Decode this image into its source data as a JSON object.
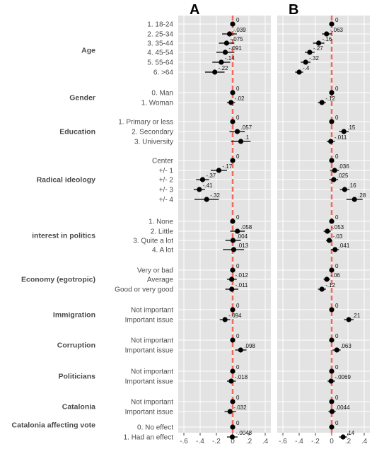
{
  "chart_data": {
    "type": "scatter",
    "subtype": "coefficient-plot",
    "x_range": [
      -0.6,
      0.4
    ],
    "x_ticks": [
      -0.6,
      -0.4,
      -0.2,
      0,
      0.2,
      0.4
    ],
    "x_tick_labels": [
      "-.6",
      "-.4",
      "-.2",
      "0",
      ".2",
      ".4"
    ],
    "reference_line": {
      "x": 0,
      "color": "#f26a5e",
      "style": "dashed"
    },
    "grid": true,
    "background": "#e3e3e3",
    "marker_color": "#000000",
    "groups": [
      {
        "label": "Age",
        "levels": [
          "1. 18-24",
          "2. 25-34",
          "3. 35-44",
          "4. 45-54",
          "5. 55-64",
          "6. >64"
        ]
      },
      {
        "label": "Gender",
        "levels": [
          "0. Man",
          "1. Woman"
        ]
      },
      {
        "label": "Education",
        "levels": [
          "1. Primary or less",
          "2. Secondary",
          "3. University"
        ]
      },
      {
        "label": "Radical ideology",
        "levels": [
          "Center",
          "+/- 1",
          "+/- 2",
          "+/- 3",
          "+/- 4"
        ]
      },
      {
        "label": "interest in politics",
        "levels": [
          "1. None",
          "2. Little",
          "3. Quite a lot",
          "4. A lot"
        ]
      },
      {
        "label": "Economy (egotropic)",
        "levels": [
          "Very or bad",
          "Average",
          "Good or very good"
        ]
      },
      {
        "label": "Immigration",
        "levels": [
          "Not important",
          "Important issue"
        ]
      },
      {
        "label": "Corruption",
        "levels": [
          "Not important",
          "Important issue"
        ]
      },
      {
        "label": "Politicians",
        "levels": [
          "Not important",
          "Important issue"
        ]
      },
      {
        "label": "Catalonia",
        "levels": [
          "Not important",
          "Important issue"
        ]
      },
      {
        "label": "Catalonia affecting vote",
        "levels": [
          "0. No effect",
          "1. Had an effect"
        ]
      }
    ],
    "panels": [
      {
        "title": "A",
        "values": [
          0,
          -0.039,
          -0.075,
          -0.091,
          -0.14,
          -0.22,
          0,
          -0.02,
          0,
          0.057,
          0.1,
          0,
          -0.17,
          -0.37,
          -0.41,
          -0.32,
          0,
          0.058,
          0.004,
          0.013,
          0,
          -0.012,
          -0.011,
          0,
          -0.094,
          0,
          0.098,
          0,
          -0.018,
          0,
          -0.032,
          0,
          -0.0048
        ],
        "labels": [
          "0",
          "-.039",
          "-.075",
          "-.091",
          "-.14",
          "-.22",
          "0",
          "-.02",
          "0",
          ".057",
          ".1",
          "0",
          "-.17",
          "-.37",
          "-.41",
          "-.32",
          "0",
          ".058",
          ".004",
          ".013",
          "0",
          "-.012",
          "-.011",
          "0",
          "-.094",
          "0",
          ".098",
          "0",
          "-.018",
          "0",
          "-.032",
          "0",
          "-.0048"
        ],
        "ci_low": [
          0,
          -0.13,
          -0.17,
          -0.2,
          -0.25,
          -0.34,
          0,
          -0.07,
          0,
          -0.04,
          -0.02,
          0,
          -0.27,
          -0.45,
          -0.48,
          -0.47,
          0,
          -0.03,
          -0.09,
          -0.12,
          0,
          -0.07,
          -0.09,
          0,
          -0.16,
          0,
          0.03,
          0,
          -0.07,
          0,
          -0.1,
          0,
          -0.07
        ],
        "ci_high": [
          0,
          0.05,
          0.02,
          0.02,
          -0.03,
          -0.1,
          0,
          0.03,
          0,
          0.15,
          0.22,
          0,
          -0.07,
          -0.29,
          -0.34,
          -0.17,
          0,
          0.15,
          0.1,
          0.14,
          0,
          0.05,
          0.07,
          0,
          -0.03,
          0,
          0.17,
          0,
          0.04,
          0,
          0.04,
          0,
          0.06
        ]
      },
      {
        "title": "B",
        "values": [
          0,
          -0.063,
          -0.16,
          -0.27,
          -0.32,
          -0.4,
          0,
          -0.12,
          0,
          0.15,
          -0.011,
          0,
          0.036,
          0.025,
          0.16,
          0.28,
          0,
          -0.053,
          -0.03,
          0.041,
          0,
          -0.06,
          -0.12,
          0,
          0.21,
          0,
          0.063,
          0,
          -0.0069,
          0,
          0.0044,
          0,
          0.14
        ],
        "labels": [
          "0",
          "-.063",
          "-.16",
          "-.27",
          "-.32",
          "-.4",
          "0",
          "-.12",
          "0",
          ".15",
          "-.011",
          "0",
          ".036",
          ".025",
          ".16",
          ".28",
          "0",
          "-.053",
          "-.03",
          ".041",
          "0",
          "-.06",
          "-.12",
          "0",
          ".21",
          "0",
          ".063",
          "0",
          "-.0069",
          "0",
          ".0044",
          "0",
          ".14"
        ],
        "ci_low": [
          0,
          -0.12,
          -0.23,
          -0.33,
          -0.38,
          -0.45,
          0,
          -0.17,
          0,
          0.09,
          -0.06,
          0,
          -0.02,
          -0.03,
          0.1,
          0.18,
          0,
          -0.1,
          -0.07,
          -0.01,
          0,
          -0.1,
          -0.17,
          0,
          0.15,
          0,
          0.01,
          0,
          -0.05,
          0,
          -0.04,
          0,
          0.09
        ],
        "ci_high": [
          0,
          0.0,
          -0.09,
          -0.21,
          -0.26,
          -0.35,
          0,
          -0.07,
          0,
          0.21,
          0.04,
          0,
          0.09,
          0.08,
          0.22,
          0.38,
          0,
          -0.01,
          0.01,
          0.09,
          0,
          -0.02,
          -0.07,
          0,
          0.27,
          0,
          0.11,
          0,
          0.04,
          0,
          0.05,
          0,
          0.19
        ]
      }
    ]
  }
}
